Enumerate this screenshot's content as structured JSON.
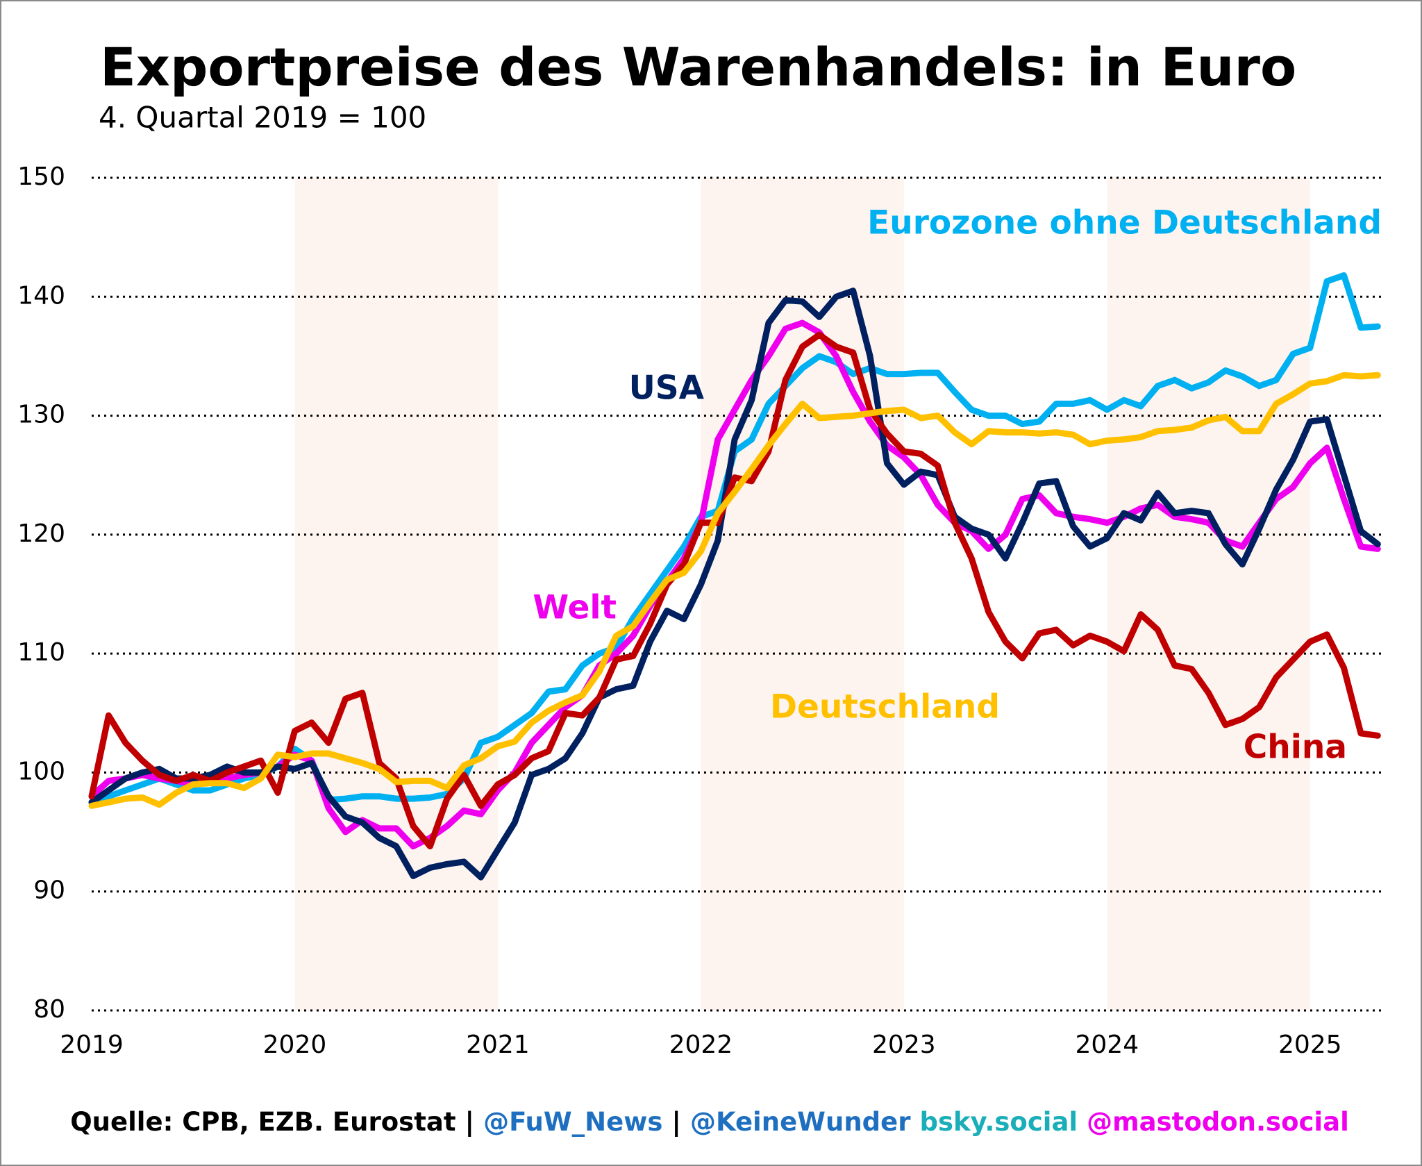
{
  "chart_data": {
    "type": "line",
    "title": "Exportpreise des Warenhandels: in Euro",
    "subtitle": "4. Quartal 2019 = 100",
    "categories": [
      "2019",
      null,
      null,
      null,
      null,
      null,
      null,
      null,
      null,
      null,
      null,
      null,
      "2020",
      null,
      null,
      null,
      null,
      null,
      null,
      null,
      null,
      null,
      null,
      null,
      "2021",
      null,
      null,
      null,
      null,
      null,
      null,
      null,
      null,
      null,
      null,
      null,
      "2022",
      null,
      null,
      null,
      null,
      null,
      null,
      null,
      null,
      null,
      null,
      null,
      "2023",
      null,
      null,
      null,
      null,
      null,
      null,
      null,
      null,
      null,
      null,
      null,
      "2024",
      null,
      null,
      null,
      null,
      null,
      null,
      null,
      null,
      null,
      null,
      null,
      "2025",
      null,
      null,
      null,
      null
    ],
    "series": [
      {
        "name": "Eurozone ohne Deutschland",
        "color": "#00b0f0",
        "values": [
          97.5,
          98,
          98.5,
          99,
          99.5,
          99,
          98.5,
          98.5,
          99,
          99.5,
          99.8,
          100.5,
          102,
          101,
          97.7,
          97.8,
          98,
          98,
          97.8,
          97.8,
          97.9,
          98.2,
          99.5,
          102.5,
          103,
          104,
          105,
          106.8,
          107,
          109,
          110,
          110.5,
          113,
          115,
          117,
          119,
          121.5,
          122,
          127,
          128,
          131,
          132.5,
          134,
          135,
          134.5,
          133.5,
          134,
          133.5,
          133.5,
          133.6,
          133.6,
          132,
          130.5,
          130,
          130,
          129.3,
          129.5,
          131,
          131,
          131.3,
          130.5,
          131.3,
          130.8,
          132.5,
          133,
          132.3,
          132.8,
          133.8,
          133.3,
          132.5,
          133,
          135.2,
          135.7,
          141.3,
          141.8,
          137.4,
          137.5
        ]
      },
      {
        "name": "Welt",
        "color": "#ee00ee",
        "values": [
          98,
          99.3,
          99.5,
          99.8,
          99.5,
          99.3,
          99,
          99.3,
          99.5,
          99.8,
          100,
          100.5,
          101.5,
          101,
          97,
          95,
          96,
          95.3,
          95.3,
          93.8,
          94.5,
          95.5,
          96.8,
          96.5,
          98.5,
          100,
          102.5,
          104,
          105.5,
          106.5,
          109,
          110,
          111.5,
          114,
          116,
          118,
          121,
          128,
          130.5,
          133,
          135,
          137.3,
          137.8,
          137,
          135,
          132,
          129.5,
          127.5,
          126.5,
          125,
          122.5,
          121,
          120.3,
          118.8,
          120,
          123,
          123.3,
          121.8,
          121.5,
          121.3,
          121,
          121.5,
          122.2,
          122.5,
          121.5,
          121.3,
          121,
          119.5,
          119,
          121,
          123,
          124,
          126,
          127.3,
          123,
          119,
          118.8
        ]
      },
      {
        "name": "USA",
        "color": "#002060",
        "values": [
          97.5,
          98.5,
          99.5,
          100,
          100.3,
          99.5,
          99.5,
          99.8,
          100.5,
          100,
          100,
          100.5,
          100.3,
          100.8,
          98,
          96.3,
          95.8,
          94.5,
          93.8,
          91.3,
          92,
          92.3,
          92.5,
          91.2,
          93.5,
          95.8,
          99.8,
          100.3,
          101.2,
          103.3,
          106.3,
          107,
          107.3,
          111,
          113.6,
          112.9,
          115.8,
          119.5,
          128,
          131.3,
          137.8,
          139.7,
          139.6,
          138.3,
          140,
          140.5,
          135,
          126,
          124.2,
          125.3,
          125,
          121.5,
          120.5,
          120,
          118,
          121,
          124.3,
          124.5,
          120.7,
          119,
          119.7,
          121.8,
          121.2,
          123.5,
          121.8,
          122,
          121.8,
          119.2,
          117.5,
          120.5,
          123.8,
          126.3,
          129.5,
          129.7,
          125,
          120.3,
          119.2
        ]
      },
      {
        "name": "China",
        "color": "#c00000",
        "values": [
          98,
          104.8,
          102.5,
          101,
          99.8,
          99.3,
          99.8,
          99.3,
          100,
          100.5,
          101,
          98.3,
          103.5,
          104.2,
          102.5,
          106.2,
          106.7,
          100.8,
          99.5,
          95.5,
          93.8,
          97.8,
          99.8,
          97.2,
          99,
          99.8,
          101.2,
          101.8,
          105,
          104.8,
          106.3,
          109.5,
          109.8,
          112.5,
          115.8,
          117.5,
          121,
          121,
          124.8,
          124.5,
          127,
          133,
          135.8,
          136.8,
          135.8,
          135.3,
          130.5,
          128.5,
          127,
          126.8,
          125.8,
          121,
          118,
          113.5,
          111,
          109.6,
          111.7,
          112,
          110.7,
          111.5,
          111,
          110.2,
          113.3,
          112,
          109,
          108.7,
          106.7,
          104,
          104.5,
          105.5,
          108,
          109.5,
          111,
          111.6,
          108.8,
          103.3,
          103.1
        ]
      },
      {
        "name": "Deutschland",
        "color": "#ffc000",
        "values": [
          97.2,
          97.5,
          97.8,
          97.9,
          97.3,
          98.3,
          99,
          99.1,
          99.1,
          98.7,
          99.5,
          101.5,
          101.3,
          101.6,
          101.6,
          101.2,
          100.8,
          100.3,
          99.2,
          99.3,
          99.3,
          98.7,
          100.6,
          101.2,
          102.2,
          102.6,
          104.2,
          105.2,
          105.9,
          106.5,
          108.5,
          111.5,
          112.3,
          114.3,
          116.2,
          116.8,
          118.6,
          121.8,
          123.6,
          125.5,
          127.5,
          129.3,
          131,
          129.8,
          129.9,
          130,
          130.2,
          130.4,
          130.5,
          129.8,
          130,
          128.6,
          127.6,
          128.7,
          128.6,
          128.6,
          128.5,
          128.6,
          128.4,
          127.6,
          127.9,
          128,
          128.2,
          128.7,
          128.8,
          129,
          129.6,
          129.9,
          128.7,
          128.7,
          131,
          131.8,
          132.7,
          132.9,
          133.4,
          133.3,
          133.4
        ]
      }
    ],
    "ylim": [
      80,
      150
    ],
    "yticks": [
      80,
      90,
      100,
      110,
      120,
      130,
      140,
      150
    ],
    "grid": true,
    "shading_color": "#fdf4ef",
    "source": [
      {
        "text": "Quelle: CPB, EZB. Eurostat",
        "color": "#000000"
      },
      {
        "text": "|",
        "color": "#000000"
      },
      {
        "text": "@FuW_News",
        "color": "#1f6fc0"
      },
      {
        "text": "|",
        "color": "#000000"
      },
      {
        "text": "@KeineWunder",
        "color": "#1f6fc0"
      },
      {
        "text": "bsky.social",
        "color": "#1aaeb8"
      },
      {
        "text": "@mastodon.social",
        "color": "#ee00ee"
      }
    ]
  }
}
